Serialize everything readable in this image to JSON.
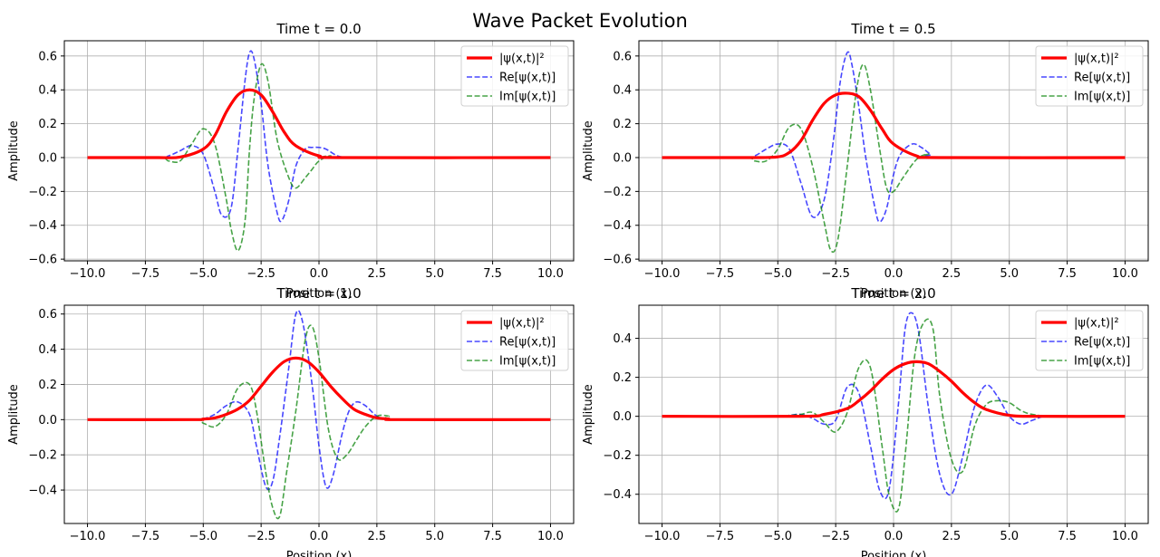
{
  "figure": {
    "suptitle": "Wave Packet Evolution"
  },
  "colors": {
    "prob": "#ff0000",
    "real": "#0000ff",
    "imag": "#008000",
    "grid": "#b0b0b0"
  },
  "chart_data": [
    {
      "type": "line",
      "title": "Time t = 0.0",
      "xlabel": "Position (x)",
      "ylabel": "Amplitude",
      "xlim": [
        -11.0,
        11.0
      ],
      "ylim": [
        -0.61,
        0.69
      ],
      "xticks": [
        -10.0,
        -7.5,
        -5.0,
        -2.5,
        0.0,
        2.5,
        5.0,
        7.5,
        10.0
      ],
      "xtick_labels": [
        "−10.0",
        "−7.5",
        "−5.0",
        "−2.5",
        "0.0",
        "2.5",
        "5.0",
        "7.5",
        "10.0"
      ],
      "yticks": [
        -0.6,
        -0.4,
        -0.2,
        0.0,
        0.2,
        0.4,
        0.6
      ],
      "ytick_labels": [
        "−0.6",
        "−0.4",
        "−0.2",
        "0.0",
        "0.2",
        "0.4",
        "0.6"
      ],
      "grid": true,
      "legend": "upper right",
      "series": [
        {
          "name": "|ψ(x,t)|²",
          "style": "solid",
          "color": "#ff0000",
          "x": [
            -10,
            -7,
            -6,
            -5,
            -4.5,
            -4,
            -3.5,
            -3,
            -2.5,
            -2,
            -1.5,
            -1,
            0,
            1,
            10
          ],
          "y": [
            0,
            0,
            0.003,
            0.05,
            0.13,
            0.27,
            0.37,
            0.4,
            0.37,
            0.27,
            0.15,
            0.07,
            0.01,
            0,
            0
          ]
        },
        {
          "name": "Re[ψ(x,t)]",
          "style": "dashed",
          "color": "#0000ff",
          "x": [
            -10,
            -7,
            -6.5,
            -6,
            -5.5,
            -5,
            -4.5,
            -4.2,
            -3.8,
            -3.5,
            -3.2,
            -3,
            -2.8,
            -2.5,
            -2.2,
            -1.8,
            -1.6,
            -1.3,
            -1,
            -0.6,
            -0.3,
            0,
            0.3,
            0.8,
            1.3,
            2,
            10
          ],
          "y": [
            0,
            0,
            0.01,
            0.04,
            0.07,
            0.02,
            -0.2,
            -0.34,
            -0.3,
            0.05,
            0.45,
            0.62,
            0.58,
            0.32,
            -0.05,
            -0.33,
            -0.37,
            -0.25,
            -0.05,
            0.05,
            0.06,
            0.06,
            0.05,
            0.01,
            0,
            0,
            0
          ]
        },
        {
          "name": "Im[ψ(x,t)]",
          "style": "dashed",
          "color": "#008000",
          "x": [
            -10,
            -7,
            -6.5,
            -6,
            -5.5,
            -5,
            -4.5,
            -4,
            -3.8,
            -3.5,
            -3.2,
            -3,
            -2.8,
            -2.5,
            -2.2,
            -1.8,
            -1.3,
            -1,
            -0.6,
            -0.3,
            0,
            0.5,
            1,
            10
          ],
          "y": [
            0,
            0,
            -0.02,
            -0.02,
            0.08,
            0.17,
            0.08,
            -0.25,
            -0.42,
            -0.55,
            -0.38,
            0.05,
            0.35,
            0.55,
            0.45,
            0.1,
            -0.12,
            -0.18,
            -0.12,
            -0.07,
            -0.02,
            0.01,
            0,
            0
          ]
        }
      ]
    },
    {
      "type": "line",
      "title": "Time t = 0.5",
      "xlabel": "Position (x)",
      "ylabel": "Amplitude",
      "xlim": [
        -11.0,
        11.0
      ],
      "ylim": [
        -0.61,
        0.69
      ],
      "xticks": [
        -10.0,
        -7.5,
        -5.0,
        -2.5,
        0.0,
        2.5,
        5.0,
        7.5,
        10.0
      ],
      "xtick_labels": [
        "−10.0",
        "−7.5",
        "−5.0",
        "−2.5",
        "0.0",
        "2.5",
        "5.0",
        "7.5",
        "10.0"
      ],
      "yticks": [
        -0.6,
        -0.4,
        -0.2,
        0.0,
        0.2,
        0.4,
        0.6
      ],
      "ytick_labels": [
        "−0.6",
        "−0.4",
        "−0.2",
        "0.0",
        "0.2",
        "0.4",
        "0.6"
      ],
      "grid": true,
      "legend": "upper right",
      "series": [
        {
          "name": "|ψ(x,t)|²",
          "style": "solid",
          "color": "#ff0000",
          "x": [
            -10,
            -6,
            -5,
            -4.5,
            -4,
            -3.5,
            -3,
            -2.5,
            -2,
            -1.5,
            -1,
            -0.5,
            0,
            1,
            2,
            10
          ],
          "y": [
            0,
            0,
            0.004,
            0.03,
            0.1,
            0.22,
            0.32,
            0.37,
            0.38,
            0.36,
            0.28,
            0.17,
            0.08,
            0.01,
            0,
            0
          ]
        },
        {
          "name": "Re[ψ(x,t)]",
          "style": "dashed",
          "color": "#0000ff",
          "x": [
            -10,
            -6.5,
            -6,
            -5.5,
            -5,
            -4.5,
            -4,
            -3.5,
            -3,
            -2.6,
            -2.3,
            -2,
            -1.8,
            -1.5,
            -1.2,
            -0.8,
            -0.6,
            -0.3,
            0,
            0.3,
            0.8,
            1.2,
            1.6,
            2,
            10
          ],
          "y": [
            0,
            0,
            0.01,
            0.05,
            0.08,
            0.05,
            -0.15,
            -0.35,
            -0.25,
            0.1,
            0.45,
            0.62,
            0.55,
            0.3,
            0,
            -0.3,
            -0.38,
            -0.3,
            -0.1,
            0.02,
            0.08,
            0.06,
            0.02,
            0,
            0
          ]
        },
        {
          "name": "Im[ψ(x,t)]",
          "style": "dashed",
          "color": "#008000",
          "x": [
            -10,
            -6.5,
            -6,
            -5.5,
            -5,
            -4.5,
            -4,
            -3.5,
            -3,
            -2.7,
            -2.4,
            -2,
            -1.6,
            -1.3,
            -1,
            -0.6,
            -0.3,
            0,
            0.4,
            1,
            1.5,
            2,
            10
          ],
          "y": [
            0,
            0,
            -0.02,
            -0.02,
            0.05,
            0.18,
            0.17,
            -0.05,
            -0.38,
            -0.55,
            -0.48,
            -0.05,
            0.4,
            0.55,
            0.4,
            0.05,
            -0.18,
            -0.2,
            -0.12,
            -0.01,
            0.02,
            0,
            0
          ]
        }
      ]
    },
    {
      "type": "line",
      "title": "Time t = 1.0",
      "xlabel": "Position (x)",
      "ylabel": "Amplitude",
      "xlim": [
        -11.0,
        11.0
      ],
      "ylim": [
        -0.59,
        0.65
      ],
      "xticks": [
        -10.0,
        -7.5,
        -5.0,
        -2.5,
        0.0,
        2.5,
        5.0,
        7.5,
        10.0
      ],
      "xtick_labels": [
        "−10.0",
        "−7.5",
        "−5.0",
        "−2.5",
        "0.0",
        "2.5",
        "5.0",
        "7.5",
        "10.0"
      ],
      "yticks": [
        -0.4,
        -0.2,
        0.0,
        0.2,
        0.4,
        0.6
      ],
      "ytick_labels": [
        "−0.4",
        "−0.2",
        "0.0",
        "0.2",
        "0.4",
        "0.6"
      ],
      "grid": true,
      "legend": "upper right",
      "series": [
        {
          "name": "|ψ(x,t)|²",
          "style": "solid",
          "color": "#ff0000",
          "x": [
            -10,
            -5.5,
            -5,
            -4.5,
            -4,
            -3.5,
            -3,
            -2.5,
            -2,
            -1.5,
            -1,
            -0.5,
            0,
            0.5,
            1,
            1.5,
            2,
            2.5,
            3,
            3.5,
            10
          ],
          "y": [
            0,
            0,
            0.003,
            0.01,
            0.03,
            0.06,
            0.11,
            0.19,
            0.27,
            0.33,
            0.35,
            0.33,
            0.27,
            0.19,
            0.12,
            0.06,
            0.03,
            0.01,
            0.004,
            0,
            0
          ]
        },
        {
          "name": "Re[ψ(x,t)]",
          "style": "dashed",
          "color": "#0000ff",
          "x": [
            -10,
            -5.5,
            -5,
            -4.5,
            -4,
            -3.5,
            -3,
            -2.7,
            -2.3,
            -2,
            -1.7,
            -1.3,
            -1,
            -0.7,
            -0.3,
            0,
            0.3,
            0.6,
            1,
            1.3,
            1.6,
            2,
            2.5,
            3,
            3.5,
            10
          ],
          "y": [
            0,
            0,
            0.005,
            0.03,
            0.08,
            0.1,
            0.03,
            -0.15,
            -0.38,
            -0.35,
            -0.1,
            0.3,
            0.6,
            0.55,
            0.2,
            -0.15,
            -0.38,
            -0.32,
            -0.08,
            0.05,
            0.1,
            0.08,
            0.02,
            0,
            0,
            0
          ]
        },
        {
          "name": "Im[ψ(x,t)]",
          "style": "dashed",
          "color": "#008000",
          "x": [
            -10,
            -5.5,
            -5,
            -4.5,
            -4,
            -3.5,
            -3,
            -2.7,
            -2.3,
            -2,
            -1.7,
            -1.4,
            -1,
            -0.6,
            -0.3,
            0,
            0.4,
            0.8,
            1.2,
            1.6,
            2,
            2.5,
            3,
            3.5,
            10
          ],
          "y": [
            0,
            0,
            -0.02,
            -0.04,
            0.03,
            0.18,
            0.2,
            0.05,
            -0.3,
            -0.5,
            -0.55,
            -0.3,
            0.05,
            0.45,
            0.53,
            0.35,
            -0.05,
            -0.22,
            -0.2,
            -0.12,
            -0.04,
            0.02,
            0.02,
            0,
            0
          ]
        }
      ]
    },
    {
      "type": "line",
      "title": "Time t = 2.0",
      "xlabel": "Position (x)",
      "ylabel": "Amplitude",
      "xlim": [
        -11.0,
        11.0
      ],
      "ylim": [
        -0.55,
        0.57
      ],
      "xticks": [
        -10.0,
        -7.5,
        -5.0,
        -2.5,
        0.0,
        2.5,
        5.0,
        7.5,
        10.0
      ],
      "xtick_labels": [
        "−10.0",
        "−7.5",
        "−5.0",
        "−2.5",
        "0.0",
        "2.5",
        "5.0",
        "7.5",
        "10.0"
      ],
      "yticks": [
        -0.4,
        -0.2,
        0.0,
        0.2,
        0.4
      ],
      "ytick_labels": [
        "−0.4",
        "−0.2",
        "0.0",
        "0.2",
        "0.4"
      ],
      "grid": true,
      "legend": "upper right",
      "series": [
        {
          "name": "|ψ(x,t)|²",
          "style": "solid",
          "color": "#ff0000",
          "x": [
            -10,
            -4,
            -3,
            -2,
            -1.5,
            -1,
            -0.5,
            0,
            0.5,
            1,
            1.5,
            2,
            2.5,
            3,
            3.5,
            4,
            5,
            6,
            10
          ],
          "y": [
            0,
            0,
            0.01,
            0.04,
            0.08,
            0.13,
            0.19,
            0.24,
            0.27,
            0.28,
            0.27,
            0.23,
            0.18,
            0.12,
            0.07,
            0.035,
            0.005,
            0,
            0
          ]
        },
        {
          "name": "Re[ψ(x,t)]",
          "style": "dashed",
          "color": "#0000ff",
          "x": [
            -10,
            -5,
            -4.5,
            -4,
            -3.5,
            -3,
            -2.5,
            -2,
            -1.5,
            -1,
            -0.6,
            -0.2,
            0.2,
            0.5,
            0.8,
            1.1,
            1.5,
            2,
            2.5,
            3,
            3.5,
            4,
            4.5,
            5,
            5.5,
            6,
            6.5,
            7,
            10
          ],
          "y": [
            0,
            0,
            0.005,
            0.01,
            -0.01,
            -0.04,
            -0.02,
            0.15,
            0.12,
            -0.15,
            -0.38,
            -0.38,
            0.05,
            0.45,
            0.53,
            0.42,
            0.05,
            -0.3,
            -0.4,
            -0.2,
            0.05,
            0.16,
            0.1,
            0,
            -0.04,
            -0.02,
            0,
            0,
            0
          ]
        },
        {
          "name": "Im[ψ(x,t)]",
          "style": "dashed",
          "color": "#008000",
          "x": [
            -10,
            -5,
            -4.5,
            -4,
            -3.5,
            -3,
            -2.5,
            -2,
            -1.5,
            -1,
            -0.5,
            -0.2,
            0.2,
            0.5,
            0.9,
            1.3,
            1.7,
            2,
            2.5,
            3,
            3.5,
            4,
            4.5,
            5,
            5.5,
            6,
            7,
            10
          ],
          "y": [
            0,
            0,
            0.005,
            0.01,
            0.02,
            -0.03,
            -0.08,
            0.02,
            0.25,
            0.25,
            -0.15,
            -0.4,
            -0.48,
            -0.2,
            0.3,
            0.48,
            0.45,
            0.1,
            -0.22,
            -0.28,
            -0.05,
            0.06,
            0.08,
            0.07,
            0.03,
            0.01,
            0,
            0
          ]
        }
      ]
    }
  ]
}
